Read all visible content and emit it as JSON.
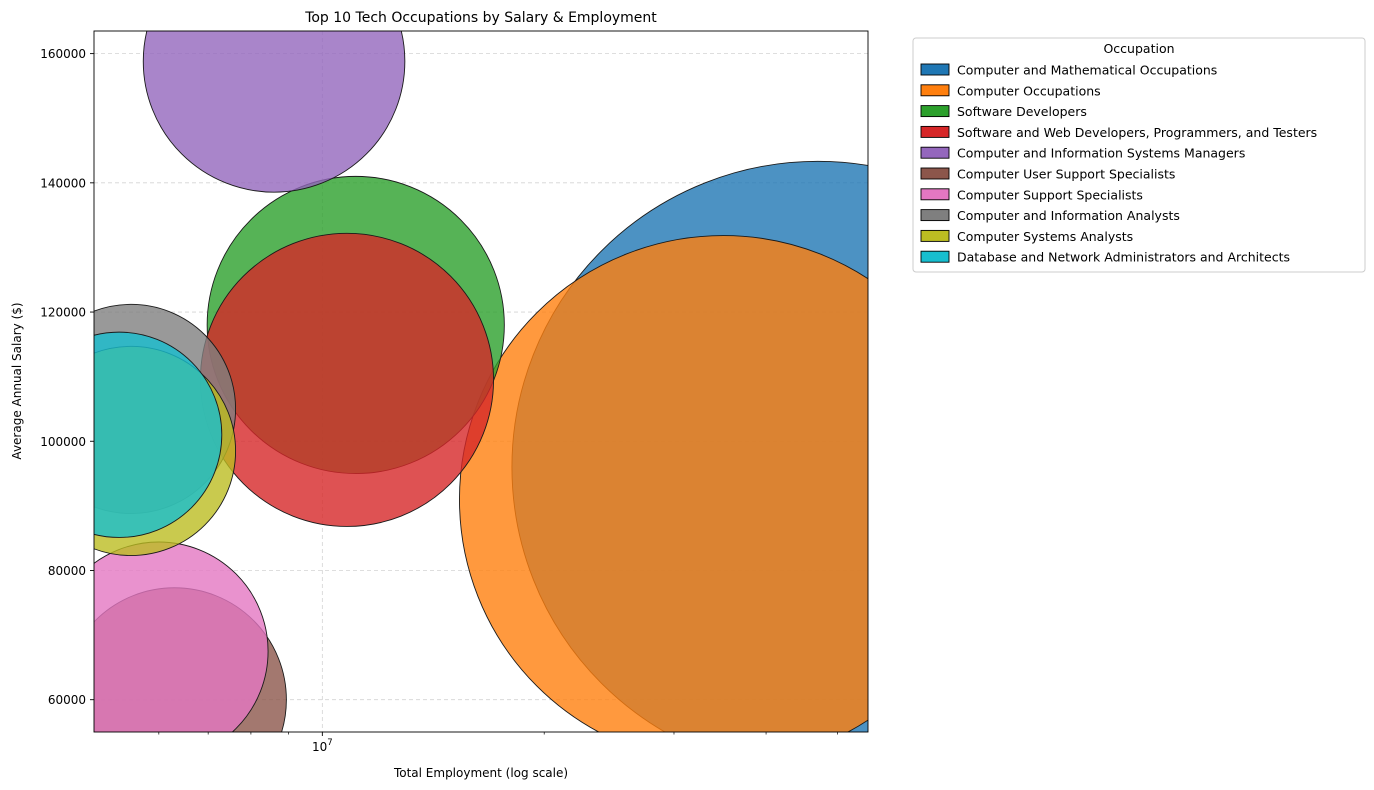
{
  "chart_data": {
    "type": "scatter",
    "title": "Top 10 Tech Occupations by Salary & Employment",
    "xlabel": "Total Employment (log scale)",
    "ylabel": "Average Annual Salary ($)",
    "x_scale": "log",
    "xlim": [
      4900000,
      55000000
    ],
    "ylim": [
      55000,
      163500
    ],
    "x_ticks": [
      {
        "value": 10000000,
        "label": "10^7"
      }
    ],
    "x_minor_ticks": [
      6000000,
      7000000,
      8000000,
      9000000,
      20000000,
      30000000,
      40000000,
      50000000
    ],
    "y_ticks": [
      60000,
      80000,
      100000,
      120000,
      140000,
      160000
    ],
    "grid": true,
    "legend": {
      "title": "Occupation",
      "placement": "outside-right-top"
    },
    "series": [
      {
        "name": "Computer and Mathematical Occupations",
        "color": "#1f77b4",
        "x": 47000000,
        "y": 96000,
        "size": 47000000
      },
      {
        "name": "Computer Occupations",
        "color": "#ff7f0e",
        "x": 35000000,
        "y": 91000,
        "size": 35000000
      },
      {
        "name": "Software Developers",
        "color": "#2ca02c",
        "x": 11100000,
        "y": 118000,
        "size": 11100000
      },
      {
        "name": "Software and Web Developers, Programmers, and Testers",
        "color": "#d62728",
        "x": 10800000,
        "y": 109500,
        "size": 10800000
      },
      {
        "name": "Computer and Information Systems Managers",
        "color": "#9467bd",
        "x": 8600000,
        "y": 158800,
        "size": 8600000
      },
      {
        "name": "Computer User Support Specialists",
        "color": "#8c564b",
        "x": 6300000,
        "y": 60000,
        "size": 6300000
      },
      {
        "name": "Computer Support Specialists",
        "color": "#e377c2",
        "x": 6000000,
        "y": 67500,
        "size": 6000000
      },
      {
        "name": "Computer and Information Analysts",
        "color": "#7f7f7f",
        "x": 5500000,
        "y": 105000,
        "size": 5500000
      },
      {
        "name": "Computer Systems Analysts",
        "color": "#bcbd22",
        "x": 5500000,
        "y": 98500,
        "size": 5500000
      },
      {
        "name": "Database and Network Administrators and Architects",
        "color": "#17becf",
        "x": 5300000,
        "y": 101000,
        "size": 5300000
      }
    ]
  }
}
